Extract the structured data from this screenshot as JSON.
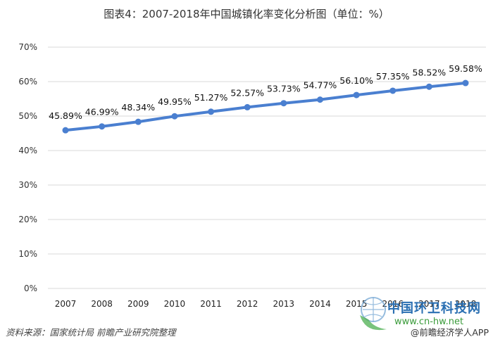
{
  "title": "图表4：2007-2018年中国城镇化率变化分析图（单位：%）",
  "source": "资料来源：国家统计局 前瞻产业研究院整理",
  "watermark": {
    "brand": "中国环卫科技网",
    "url": "www.cn-hw.net",
    "app": "@前瞻经济学人APP"
  },
  "colors": {
    "line": "#4a7fd0",
    "grid": "#d9d9d9"
  },
  "chart_data": {
    "type": "line",
    "title": "图表4：2007-2018年中国城镇化率变化分析图（单位：%）",
    "xlabel": "",
    "ylabel": "",
    "categories": [
      "2007",
      "2008",
      "2009",
      "2010",
      "2011",
      "2012",
      "2013",
      "2014",
      "2015",
      "2016",
      "2017",
      "2018"
    ],
    "series": [
      {
        "name": "城镇化率",
        "values": [
          45.89,
          46.99,
          48.34,
          49.95,
          51.27,
          52.57,
          53.73,
          54.77,
          56.1,
          57.35,
          58.52,
          59.58
        ]
      }
    ],
    "data_labels": [
      "45.89%",
      "46.99%",
      "48.34%",
      "49.95%",
      "51.27%",
      "52.57%",
      "53.73%",
      "54.77%",
      "56.10%",
      "57.35%",
      "58.52%",
      "59.58%"
    ],
    "yticks": [
      "0%",
      "10%",
      "20%",
      "30%",
      "40%",
      "50%",
      "60%",
      "70%"
    ],
    "ylim": [
      0,
      70
    ],
    "grid": true,
    "legend": "none"
  }
}
